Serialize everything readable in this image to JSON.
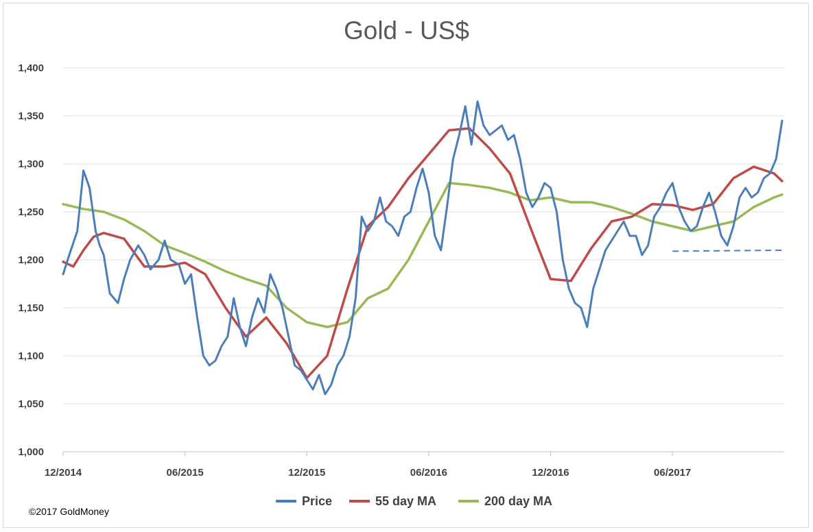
{
  "chart_data": {
    "type": "line",
    "title": "Gold - US$",
    "xlabel": "",
    "ylabel": "",
    "ylim": [
      1000,
      1400
    ],
    "y_ticks": [
      "1,000",
      "1,050",
      "1,100",
      "1,150",
      "1,200",
      "1,250",
      "1,300",
      "1,350",
      "1,400"
    ],
    "y_tick_values": [
      1000,
      1050,
      1100,
      1150,
      1200,
      1250,
      1300,
      1350,
      1400
    ],
    "x_ticks": [
      "12/2014",
      "06/2015",
      "12/2015",
      "06/2016",
      "12/2016",
      "06/2017"
    ],
    "x_tick_positions": [
      0,
      6,
      12,
      18,
      24,
      30
    ],
    "xlim": [
      0,
      35.5
    ],
    "x_unit": "months since 12/2014",
    "grid": "horizontal",
    "legend_position": "bottom",
    "series": [
      {
        "name": "Price",
        "color": "#4a7ebb",
        "x": [
          0,
          0.3,
          0.7,
          1.0,
          1.3,
          1.6,
          1.8,
          2.0,
          2.3,
          2.7,
          3.0,
          3.3,
          3.7,
          4.0,
          4.3,
          4.7,
          5.0,
          5.3,
          5.7,
          6.0,
          6.3,
          6.6,
          6.9,
          7.2,
          7.5,
          7.8,
          8.1,
          8.4,
          8.7,
          9.0,
          9.3,
          9.6,
          9.9,
          10.2,
          10.5,
          10.8,
          11.1,
          11.4,
          11.7,
          12.0,
          12.3,
          12.6,
          12.9,
          13.2,
          13.5,
          13.8,
          14.1,
          14.4,
          14.7,
          15.0,
          15.3,
          15.6,
          15.9,
          16.2,
          16.5,
          16.8,
          17.1,
          17.4,
          17.7,
          18.0,
          18.3,
          18.6,
          18.9,
          19.2,
          19.5,
          19.8,
          20.1,
          20.4,
          20.7,
          21.0,
          21.3,
          21.6,
          21.9,
          22.2,
          22.5,
          22.8,
          23.1,
          23.4,
          23.7,
          24.0,
          24.3,
          24.6,
          24.9,
          25.2,
          25.5,
          25.8,
          26.1,
          26.4,
          26.7,
          27.0,
          27.3,
          27.6,
          27.9,
          28.2,
          28.5,
          28.8,
          29.1,
          29.4,
          29.7,
          30.0,
          30.3,
          30.6,
          30.9,
          31.2,
          31.5,
          31.8,
          32.1,
          32.4,
          32.7,
          33.0,
          33.3,
          33.6,
          33.9,
          34.2,
          34.5,
          34.8,
          35.1,
          35.4
        ],
        "values": [
          1185,
          1205,
          1230,
          1293,
          1275,
          1230,
          1215,
          1205,
          1165,
          1155,
          1180,
          1200,
          1215,
          1205,
          1190,
          1200,
          1220,
          1200,
          1195,
          1175,
          1185,
          1140,
          1100,
          1090,
          1095,
          1110,
          1120,
          1160,
          1130,
          1110,
          1140,
          1160,
          1145,
          1185,
          1170,
          1150,
          1120,
          1090,
          1085,
          1075,
          1065,
          1080,
          1060,
          1070,
          1090,
          1100,
          1120,
          1160,
          1245,
          1230,
          1240,
          1265,
          1240,
          1235,
          1225,
          1245,
          1250,
          1275,
          1295,
          1270,
          1225,
          1210,
          1255,
          1305,
          1330,
          1360,
          1320,
          1365,
          1340,
          1330,
          1335,
          1340,
          1325,
          1330,
          1305,
          1270,
          1255,
          1265,
          1280,
          1275,
          1250,
          1200,
          1170,
          1155,
          1150,
          1130,
          1170,
          1190,
          1210,
          1220,
          1230,
          1240,
          1225,
          1225,
          1205,
          1215,
          1245,
          1255,
          1270,
          1280,
          1255,
          1240,
          1230,
          1235,
          1255,
          1270,
          1250,
          1225,
          1215,
          1235,
          1265,
          1275,
          1265,
          1270,
          1285,
          1290,
          1305,
          1345
        ]
      },
      {
        "name": "55 day MA",
        "color": "#be4b48",
        "x": [
          0,
          0.5,
          1.0,
          1.5,
          2.0,
          3.0,
          4.0,
          5.0,
          6.0,
          7.0,
          8.0,
          9.0,
          10.0,
          11.0,
          12.0,
          13.0,
          14.0,
          15.0,
          16.0,
          17.0,
          18.0,
          19.0,
          20.0,
          21.0,
          22.0,
          23.0,
          24.0,
          25.0,
          26.0,
          27.0,
          28.0,
          29.0,
          30.0,
          31.0,
          32.0,
          33.0,
          34.0,
          35.0,
          35.4
        ],
        "values": [
          1198,
          1193,
          1210,
          1224,
          1228,
          1222,
          1193,
          1193,
          1197,
          1185,
          1150,
          1120,
          1140,
          1113,
          1077,
          1100,
          1170,
          1235,
          1255,
          1285,
          1310,
          1335,
          1337,
          1316,
          1290,
          1234,
          1180,
          1178,
          1212,
          1240,
          1245,
          1258,
          1257,
          1252,
          1258,
          1285,
          1297,
          1290,
          1282
        ]
      },
      {
        "name": "200 day MA",
        "color": "#98b954",
        "x": [
          0,
          1,
          2,
          3,
          4,
          5,
          6,
          7,
          8,
          9,
          10,
          11,
          12,
          13,
          14,
          15,
          16,
          17,
          18,
          19,
          20,
          21,
          22,
          23,
          24,
          25,
          26,
          27,
          28,
          29,
          30,
          31,
          32,
          33,
          34,
          35,
          35.4
        ],
        "values": [
          1258,
          1253,
          1250,
          1242,
          1230,
          1215,
          1207,
          1198,
          1188,
          1180,
          1173,
          1150,
          1135,
          1130,
          1135,
          1160,
          1170,
          1200,
          1240,
          1280,
          1278,
          1275,
          1270,
          1262,
          1265,
          1260,
          1260,
          1255,
          1248,
          1240,
          1235,
          1230,
          1235,
          1240,
          1255,
          1265,
          1268
        ]
      }
    ],
    "annotations": [
      {
        "type": "dashed-line",
        "color": "#4a7ebb",
        "x": [
          30.0,
          35.5
        ],
        "values": [
          1209,
          1210
        ]
      }
    ],
    "legend": [
      "Price",
      "55 day MA",
      "200 day MA"
    ]
  },
  "copyright": "©2017 GoldMoney"
}
